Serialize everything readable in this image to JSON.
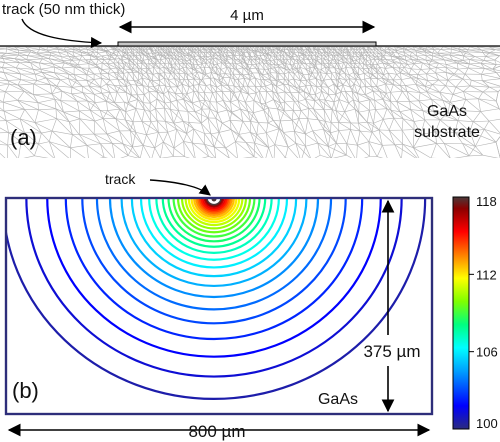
{
  "panel_a": {
    "label": "(a)",
    "track_label": "track (50 nm thick)",
    "width_label": "4 µm",
    "substrate_line1": "GaAs",
    "substrate_line2": "substrate",
    "mesh_color": "#b4b4b4",
    "track_color": "#c8c8c8"
  },
  "panel_b": {
    "label": "(b)",
    "track_label": "track",
    "depth_label": "375 µm",
    "width_label": "800 µm",
    "material_label": "GaAs",
    "frame_color": "#2e2e7a",
    "contour_levels": [
      100.6,
      101.2,
      101.8,
      102.4,
      103,
      103.6,
      104.2,
      104.8,
      105.4,
      106,
      106.6,
      107.2,
      107.8,
      108.4,
      109,
      109.6,
      110.2,
      110.8,
      111.4,
      112,
      112.6,
      113.2,
      113.8,
      114.4,
      115,
      115.6,
      116.2,
      116.8,
      117.4,
      118
    ]
  },
  "colorbar": {
    "min": 100,
    "max": 118,
    "tick_labels": [
      "118",
      "112",
      "106",
      "100"
    ],
    "tick_values": [
      118,
      112,
      106,
      100
    ],
    "colors": [
      "#2b2b7f",
      "#0000ff",
      "#00a0ff",
      "#00ffff",
      "#00ff80",
      "#80ff00",
      "#ffff00",
      "#ff8000",
      "#ff0000",
      "#8b0000",
      "#4a3a3a"
    ]
  }
}
